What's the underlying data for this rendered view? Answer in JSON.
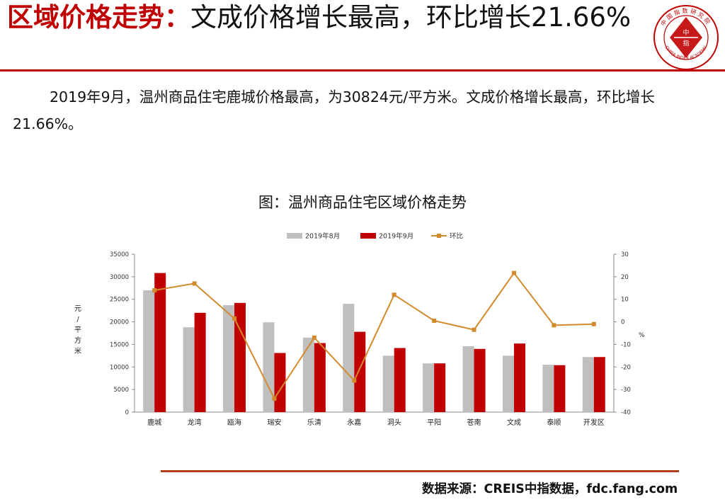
{
  "header": {
    "title_red": "区域价格走势：",
    "title_black": "文成价格增长最高，环比增长21.66%",
    "logo_center_top": "中",
    "logo_center_bottom": "指",
    "logo_arc_top": "中国指数研究院",
    "logo_arc_bottom": "CHINA INDEX ACADEMY"
  },
  "body": {
    "paragraph": "2019年9月，温州商品住宅鹿城价格最高，为30824元/平方米。文成价格增长最高，环比增长21.66%。"
  },
  "chart_title": "图：温州商品住宅区域价格走势",
  "chart_data": {
    "type": "bar",
    "categories": [
      "鹿城",
      "龙湾",
      "瓯海",
      "瑞安",
      "乐清",
      "永嘉",
      "洞头",
      "平阳",
      "苍南",
      "文成",
      "泰顺",
      "开发区"
    ],
    "series": [
      {
        "name": "2019年8月",
        "type": "bar",
        "axis": "left",
        "color": "#bfbfbf",
        "values": [
          27000,
          18800,
          23700,
          19900,
          16500,
          24000,
          12500,
          10800,
          14600,
          12500,
          10500,
          12200
        ]
      },
      {
        "name": "2019年9月",
        "type": "bar",
        "axis": "left",
        "color": "#c00000",
        "values": [
          30824,
          22000,
          24200,
          13100,
          15300,
          17800,
          14200,
          10800,
          14000,
          15200,
          10400,
          12200
        ]
      },
      {
        "name": "环比",
        "type": "line",
        "axis": "right",
        "color": "#d38a2c",
        "values": [
          14,
          17,
          1.5,
          -34,
          -7,
          -26,
          12,
          0.5,
          -3.5,
          21.66,
          -1.5,
          -1
        ]
      }
    ],
    "ylabel": "元/平方米",
    "y2label": "%",
    "ylim": [
      0,
      35000
    ],
    "yticks": [
      0,
      5000,
      10000,
      15000,
      20000,
      25000,
      30000,
      35000
    ],
    "y2lim": [
      -40,
      30
    ],
    "y2ticks": [
      -40,
      -30,
      -20,
      -10,
      0,
      10,
      20,
      30
    ],
    "legend_position": "top"
  },
  "footer": {
    "source": "数据来源：CREIS中指数据，fdc.fang.com"
  }
}
